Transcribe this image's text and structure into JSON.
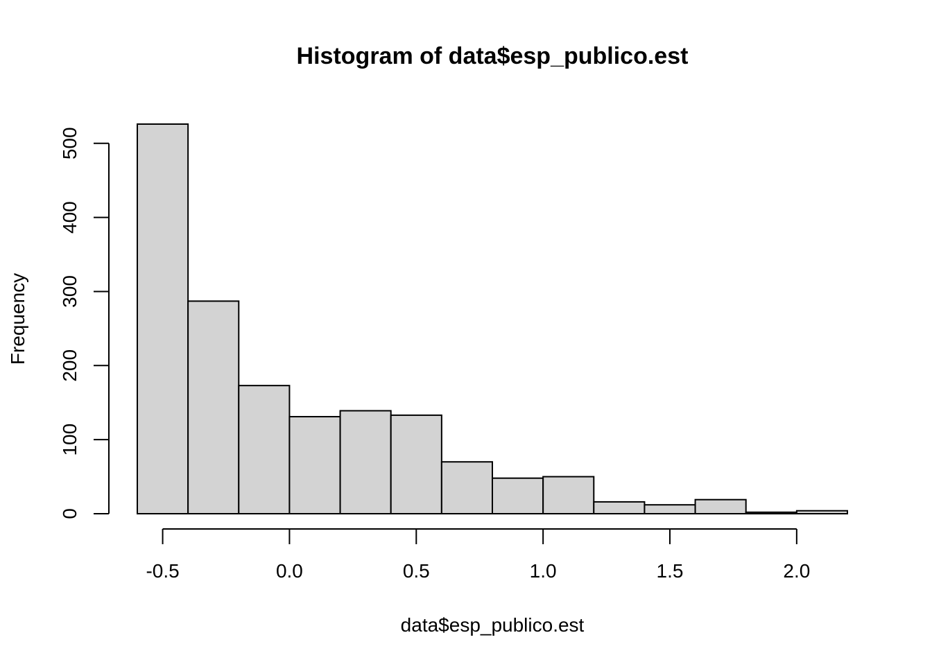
{
  "chart_data": {
    "type": "bar",
    "title": "Histogram of data$esp_publico.est",
    "xlabel": "data$esp_publico.est",
    "ylabel": "Frequency",
    "bin_edges": [
      -0.6,
      -0.4,
      -0.2,
      0.0,
      0.2,
      0.4,
      0.6,
      0.8,
      1.0,
      1.2,
      1.4,
      1.6,
      1.8,
      2.0,
      2.2
    ],
    "values": [
      526,
      287,
      173,
      131,
      139,
      133,
      70,
      48,
      50,
      16,
      12,
      19,
      2,
      4
    ],
    "xlim": [
      -0.6,
      2.2
    ],
    "ylim": [
      0,
      526
    ],
    "x_ticks": [
      -0.5,
      0.0,
      0.5,
      1.0,
      1.5,
      2.0
    ],
    "x_tick_labels": [
      "-0.5",
      "0.0",
      "0.5",
      "1.0",
      "1.5",
      "2.0"
    ],
    "y_ticks": [
      0,
      100,
      200,
      300,
      400,
      500
    ],
    "y_tick_labels": [
      "0",
      "100",
      "200",
      "300",
      "400",
      "500"
    ],
    "grid": false,
    "bar_color": "#d3d3d3",
    "edge_color": "#000000"
  }
}
